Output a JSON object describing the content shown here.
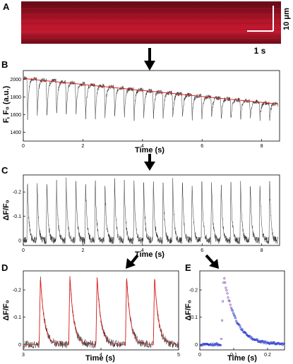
{
  "panels": {
    "A": {
      "label": "A",
      "scale_y": "10 μm",
      "scale_x": "1 s"
    },
    "B": {
      "label": "B",
      "xlabel": "Time (s)",
      "ylabel": "F, F₀ (a.u.)",
      "yticks": [
        "2000",
        "1800",
        "1600",
        "1400"
      ],
      "xticks": [
        "0",
        "2",
        "4",
        "6",
        "8"
      ]
    },
    "C": {
      "label": "C",
      "xlabel": "Time (s)",
      "ylabel": "ΔF/F₀",
      "yticks": [
        "-0.2",
        "-0.1",
        "0"
      ],
      "xticks": [
        "0",
        "2",
        "4",
        "6",
        "8"
      ]
    },
    "D": {
      "label": "D",
      "xlabel": "Time (s)",
      "ylabel": "ΔF/F₀",
      "yticks": [
        "-0.2",
        "-0.1",
        "0"
      ],
      "xticks": [
        "3",
        "4",
        "5"
      ]
    },
    "E": {
      "label": "E",
      "xlabel": "Time (s)",
      "ylabel": "ΔF/F₀",
      "yticks": [
        "-0.2",
        "-0.1",
        "0"
      ],
      "xticks": [
        "0",
        "0.1",
        "0.2"
      ]
    }
  },
  "chart_data": [
    {
      "panel": "B",
      "type": "line",
      "xlim": [
        0,
        8.6
      ],
      "ylim": [
        1300,
        2100
      ],
      "beats": 26,
      "baseline_start": 2020,
      "baseline_end": 1720,
      "trough": 1500
    },
    {
      "panel": "C",
      "type": "line",
      "xlim": [
        0,
        8.6
      ],
      "ylim": [
        0.02,
        -0.27
      ],
      "beats": 26,
      "peak": -0.25
    },
    {
      "panel": "D",
      "type": "line",
      "xlim": [
        3,
        5
      ],
      "ylim": [
        0.02,
        -0.27
      ],
      "peaks_x": [
        3.22,
        3.6,
        3.95,
        4.33,
        4.69
      ],
      "peak": -0.25
    },
    {
      "panel": "E",
      "type": "scatter",
      "xlim": [
        0,
        0.25
      ],
      "ylim": [
        0.02,
        -0.27
      ],
      "onset": 0.063,
      "peak": -0.25,
      "tau": 0.035
    }
  ],
  "colors": {
    "trace": "#333333",
    "fit": "#e02020",
    "points": "#7a3fa8",
    "pointsE": "#2030c8",
    "kymo": "#b01428"
  }
}
